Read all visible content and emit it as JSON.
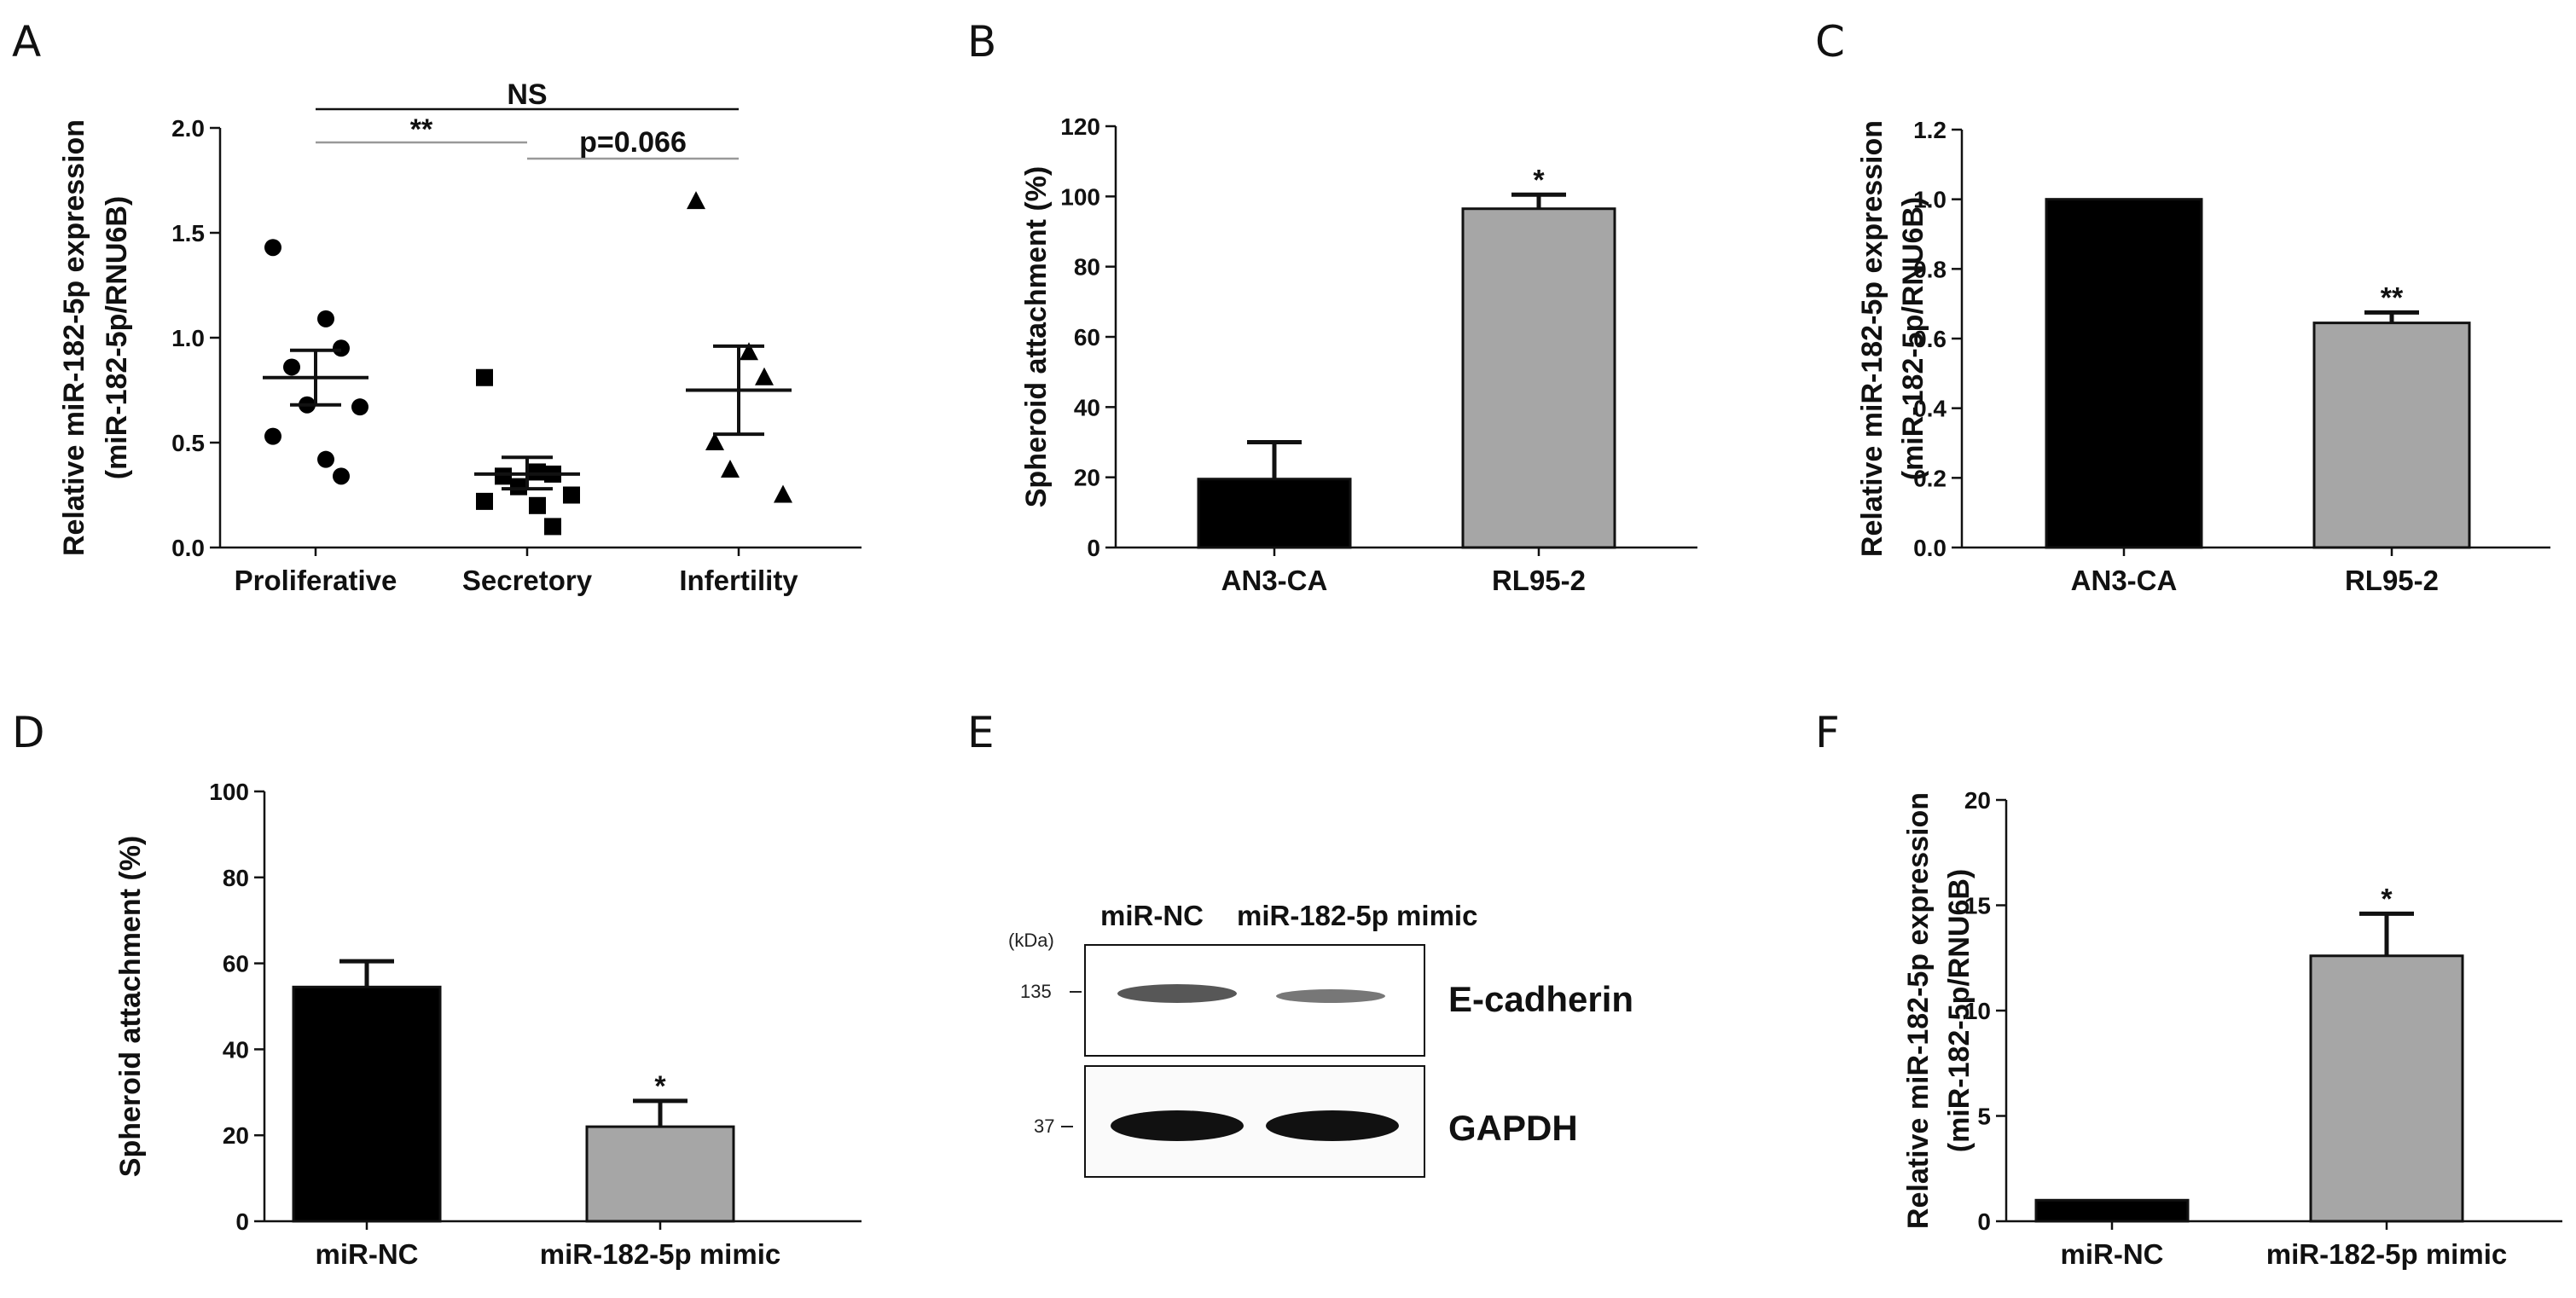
{
  "panels": {
    "A": {
      "letter": "A"
    },
    "B": {
      "letter": "B"
    },
    "C": {
      "letter": "C"
    },
    "D": {
      "letter": "D"
    },
    "E": {
      "letter": "E"
    },
    "F": {
      "letter": "F"
    }
  },
  "chart_data": [
    {
      "panel": "A",
      "type": "scatter",
      "ylabel": [
        "Relative miR-182-5p expression",
        "(miR-182-5p/RNU6B)"
      ],
      "ylim": [
        0,
        2.0
      ],
      "yticks": [
        "0.0",
        "0.5",
        "1.0",
        "1.5",
        "2.0"
      ],
      "categories": [
        "Proliferative",
        "Secretory",
        "Infertility"
      ],
      "groups": [
        {
          "name": "Proliferative",
          "marker": "circle",
          "mean": 0.81,
          "sem_low": 0.68,
          "sem_high": 0.94,
          "points": [
            1.43,
            1.09,
            0.95,
            0.86,
            0.68,
            0.67,
            0.53,
            0.42,
            0.34
          ]
        },
        {
          "name": "Secretory",
          "marker": "square",
          "mean": 0.35,
          "sem_low": 0.28,
          "sem_high": 0.43,
          "points": [
            0.81,
            0.36,
            0.35,
            0.34,
            0.29,
            0.25,
            0.22,
            0.2,
            0.1
          ]
        },
        {
          "name": "Infertility",
          "marker": "triangle",
          "mean": 0.75,
          "sem_low": 0.54,
          "sem_high": 0.96,
          "points": [
            1.65,
            0.93,
            0.81,
            0.5,
            0.37,
            0.25
          ]
        }
      ],
      "comparisons": [
        {
          "from": 0,
          "to": 2,
          "label": "NS"
        },
        {
          "from": 0,
          "to": 1,
          "label": "**"
        },
        {
          "from": 1,
          "to": 2,
          "label": "p=0.066"
        }
      ]
    },
    {
      "panel": "B",
      "type": "bar",
      "ylabel": "Spheroid attachment (%)",
      "ylim": [
        0,
        120
      ],
      "yticks": [
        "0",
        "20",
        "40",
        "60",
        "80",
        "100",
        "120"
      ],
      "categories": [
        "AN3-CA",
        "RL95-2"
      ],
      "values": [
        19.5,
        96.5
      ],
      "errors": [
        10.5,
        4.0
      ],
      "colors": [
        "#000000",
        "#a6a6a6"
      ],
      "significance": [
        "",
        "*"
      ]
    },
    {
      "panel": "C",
      "type": "bar",
      "ylabel": [
        "Relative miR-182-5p expression",
        "(miR-182-5p/RNU6B)"
      ],
      "ylim": [
        0,
        1.2
      ],
      "yticks": [
        "0.0",
        "0.2",
        "0.4",
        "0.6",
        "0.8",
        "1.0",
        "1.2"
      ],
      "categories": [
        "AN3-CA",
        "RL95-2"
      ],
      "values": [
        1.0,
        0.645
      ],
      "errors": [
        0.0,
        0.03
      ],
      "colors": [
        "#000000",
        "#a6a6a6"
      ],
      "significance": [
        "",
        "**"
      ]
    },
    {
      "panel": "D",
      "type": "bar",
      "ylabel": "Spheroid attachment (%)",
      "ylim": [
        0,
        100
      ],
      "yticks": [
        "0",
        "20",
        "40",
        "60",
        "80",
        "100"
      ],
      "categories": [
        "miR-NC",
        "miR-182-5p mimic"
      ],
      "values": [
        54.5,
        22.0
      ],
      "errors": [
        6.0,
        6.0
      ],
      "colors": [
        "#000000",
        "#a6a6a6"
      ],
      "significance": [
        "",
        "*"
      ]
    },
    {
      "panel": "F",
      "type": "bar",
      "ylabel": [
        "Relative miR-182-5p expression",
        "(miR-182-5p/RNU6B)"
      ],
      "ylim": [
        0,
        20
      ],
      "yticks": [
        "0",
        "5",
        "10",
        "15",
        "20"
      ],
      "categories": [
        "miR-NC",
        "miR-182-5p mimic"
      ],
      "values": [
        1.0,
        12.6
      ],
      "errors": [
        0.0,
        2.0
      ],
      "colors": [
        "#000000",
        "#a6a6a6"
      ],
      "significance": [
        "",
        "*"
      ]
    }
  ],
  "blot": {
    "lanes": [
      "miR-NC",
      "miR-182-5p mimic"
    ],
    "unit": "(kDa)",
    "rows": [
      {
        "protein": "E-cadherin",
        "marker": "135",
        "intensities": [
          0.85,
          0.55
        ]
      },
      {
        "protein": "GAPDH",
        "marker": "37",
        "intensities": [
          1.0,
          1.0
        ]
      }
    ]
  }
}
